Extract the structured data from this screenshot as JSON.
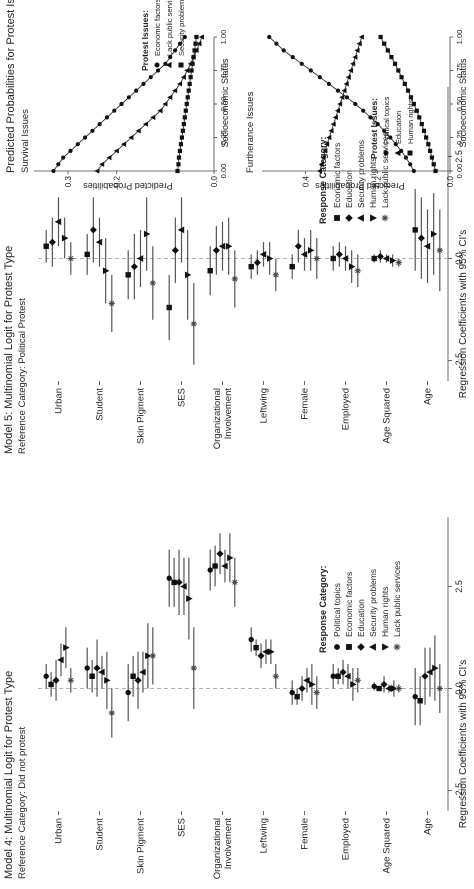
{
  "page_title": "Predicted Probabilities for Protest Issues",
  "chart_data": [
    {
      "type": "scatter",
      "title": "Model 4: Multinomial Logit for Protest Type",
      "subtitle": "Reference Category: Did not protest",
      "xlabel": "Regression Coefficients with 95% CI's",
      "xlim": [
        -3,
        4.2
      ],
      "xticks": [
        "-2.5",
        "0.0",
        "2.5"
      ],
      "xtick_values": [
        -2.5,
        0,
        2.5
      ],
      "categories": [
        "Urban",
        "Student",
        "Skin Pigment",
        "SES",
        "Organizational\nInvolvement",
        "Leftwing",
        "Female",
        "Employed",
        "Age Squared",
        "Age"
      ],
      "legend_title": "Response Category:",
      "series": [
        {
          "name": "Political topics",
          "marker": "circle",
          "estimates": [
            0.3,
            0.5,
            -0.1,
            2.7,
            2.9,
            1.2,
            -0.1,
            0.3,
            0.05,
            -0.2
          ],
          "ci": [
            [
              0.0,
              0.6
            ],
            [
              0.0,
              1.0
            ],
            [
              -0.8,
              0.6
            ],
            [
              2.0,
              3.4
            ],
            [
              2.4,
              3.4
            ],
            [
              0.9,
              1.5
            ],
            [
              -0.4,
              0.2
            ],
            [
              0.0,
              0.6
            ],
            [
              -0.05,
              0.15
            ],
            [
              -0.9,
              0.5
            ]
          ]
        },
        {
          "name": "Economic factors",
          "marker": "square",
          "estimates": [
            0.1,
            0.3,
            0.3,
            2.6,
            3.0,
            1.0,
            -0.2,
            0.3,
            0.0,
            -0.3
          ],
          "ci": [
            [
              -0.2,
              0.4
            ],
            [
              -0.1,
              0.7
            ],
            [
              -0.2,
              0.8
            ],
            [
              2.0,
              3.2
            ],
            [
              2.5,
              3.5
            ],
            [
              0.8,
              1.2
            ],
            [
              -0.4,
              0.0
            ],
            [
              0.1,
              0.5
            ],
            [
              -0.05,
              0.05
            ],
            [
              -0.9,
              0.3
            ]
          ]
        },
        {
          "name": "Education",
          "marker": "diamond",
          "estimates": [
            0.2,
            0.5,
            0.2,
            2.6,
            3.3,
            0.8,
            0.0,
            0.4,
            0.1,
            0.3
          ],
          "ci": [
            [
              -0.3,
              0.7
            ],
            [
              -0.2,
              1.2
            ],
            [
              -0.5,
              0.9
            ],
            [
              1.8,
              3.4
            ],
            [
              2.8,
              3.8
            ],
            [
              0.5,
              1.1
            ],
            [
              -0.3,
              0.3
            ],
            [
              0.1,
              0.7
            ],
            [
              -0.1,
              0.3
            ],
            [
              -0.4,
              1.0
            ]
          ]
        },
        {
          "name": "Security problems",
          "marker": "triangle-up",
          "estimates": [
            0.7,
            0.4,
            0.4,
            2.5,
            3.0,
            0.9,
            0.2,
            0.3,
            0.0,
            0.4
          ],
          "ci": [
            [
              0.3,
              1.1
            ],
            [
              0.0,
              0.8
            ],
            [
              -0.1,
              0.9
            ],
            [
              1.8,
              3.2
            ],
            [
              2.6,
              3.4
            ],
            [
              0.6,
              1.2
            ],
            [
              -0.1,
              0.5
            ],
            [
              0.0,
              0.6
            ],
            [
              -0.1,
              0.1
            ],
            [
              -0.2,
              1.0
            ]
          ]
        },
        {
          "name": "Human rights",
          "marker": "triangle-down",
          "estimates": [
            1.0,
            0.2,
            0.8,
            2.2,
            3.2,
            0.9,
            0.1,
            0.1,
            0.0,
            0.5
          ],
          "ci": [
            [
              0.5,
              1.5
            ],
            [
              -0.5,
              0.9
            ],
            [
              0.0,
              1.6
            ],
            [
              1.2,
              3.2
            ],
            [
              2.6,
              3.8
            ],
            [
              0.6,
              1.2
            ],
            [
              -0.4,
              0.6
            ],
            [
              -0.3,
              0.5
            ],
            [
              -0.2,
              0.2
            ],
            [
              -0.3,
              1.3
            ]
          ]
        },
        {
          "name": "Lack public services",
          "marker": "asterisk",
          "estimates": [
            0.2,
            -0.6,
            0.8,
            0.5,
            2.6,
            0.3,
            -0.1,
            0.2,
            0.0,
            0.0
          ],
          "ci": [
            [
              -0.1,
              0.5
            ],
            [
              -1.2,
              0.0
            ],
            [
              0.1,
              1.5
            ],
            [
              -0.5,
              1.5
            ],
            [
              2.0,
              3.2
            ],
            [
              0.0,
              0.6
            ],
            [
              -0.5,
              0.3
            ],
            [
              -0.1,
              0.5
            ],
            [
              -0.1,
              0.1
            ],
            [
              -0.6,
              0.6
            ]
          ]
        }
      ]
    },
    {
      "type": "scatter",
      "title": "Model 5: Multinomial Logit for Protest Type",
      "subtitle": "Reference Category: Political Protest",
      "xlabel": "Regression Coefficients with 95% CI's",
      "xlim": [
        -3,
        4.2
      ],
      "xticks": [
        "-2.5",
        "0.0",
        "2.5"
      ],
      "xtick_values": [
        -2.5,
        0,
        2.5
      ],
      "categories": [
        "Urban",
        "Student",
        "Skin Pigment",
        "SES",
        "Organizational\nInvolvement",
        "Leftwing",
        "Female",
        "Employed",
        "Age Squared",
        "Age"
      ],
      "legend_title": "Response Category:",
      "series": [
        {
          "name": "Economic factors",
          "marker": "square",
          "estimates": [
            0.3,
            0.1,
            -0.4,
            -1.2,
            -0.3,
            -0.2,
            -0.2,
            0.0,
            0.0,
            0.7
          ],
          "ci": [
            [
              -0.1,
              0.7
            ],
            [
              -0.4,
              0.6
            ],
            [
              -1.0,
              0.2
            ],
            [
              -2.0,
              -0.4
            ],
            [
              -0.9,
              0.3
            ],
            [
              -0.5,
              0.1
            ],
            [
              -0.5,
              0.1
            ],
            [
              -0.3,
              0.3
            ],
            [
              -0.1,
              0.1
            ],
            [
              -0.3,
              1.7
            ]
          ]
        },
        {
          "name": "Education",
          "marker": "diamond",
          "estimates": [
            0.4,
            0.7,
            -0.2,
            0.2,
            0.2,
            -0.1,
            0.3,
            0.1,
            0.05,
            0.5
          ],
          "ci": [
            [
              -0.2,
              1.0
            ],
            [
              -0.1,
              1.5
            ],
            [
              -1.0,
              0.6
            ],
            [
              -0.6,
              1.0
            ],
            [
              -0.4,
              0.8
            ],
            [
              -0.4,
              0.2
            ],
            [
              -0.1,
              0.7
            ],
            [
              -0.2,
              0.4
            ],
            [
              -0.1,
              0.2
            ],
            [
              -0.5,
              1.5
            ]
          ]
        },
        {
          "name": "Security problems",
          "marker": "triangle-up",
          "estimates": [
            0.9,
            0.4,
            0.0,
            0.7,
            0.3,
            0.1,
            0.1,
            0.0,
            0.0,
            0.3
          ],
          "ci": [
            [
              0.3,
              1.5
            ],
            [
              -0.2,
              1.0
            ],
            [
              -0.7,
              0.7
            ],
            [
              -0.1,
              1.5
            ],
            [
              -0.3,
              0.9
            ],
            [
              -0.2,
              0.4
            ],
            [
              -0.3,
              0.5
            ],
            [
              -0.3,
              0.3
            ],
            [
              -0.1,
              0.1
            ],
            [
              -0.6,
              1.2
            ]
          ]
        },
        {
          "name": "Human rights",
          "marker": "triangle-down",
          "estimates": [
            0.5,
            -0.3,
            0.6,
            -0.4,
            0.3,
            0.0,
            0.2,
            -0.2,
            -0.05,
            0.6
          ],
          "ci": [
            [
              0.0,
              1.0
            ],
            [
              -1.1,
              0.5
            ],
            [
              -0.3,
              1.5
            ],
            [
              -1.5,
              0.7
            ],
            [
              -0.4,
              1.0
            ],
            [
              -0.4,
              0.4
            ],
            [
              -0.3,
              0.7
            ],
            [
              -0.6,
              0.2
            ],
            [
              -0.2,
              0.1
            ],
            [
              -0.4,
              1.6
            ]
          ]
        },
        {
          "name": "Lack public services",
          "marker": "asterisk",
          "estimates": [
            0.0,
            -1.1,
            -0.6,
            -1.6,
            -0.5,
            -0.4,
            0.0,
            -0.3,
            -0.1,
            0.2
          ],
          "ci": [
            [
              -0.4,
              0.4
            ],
            [
              -1.8,
              -0.4
            ],
            [
              -1.5,
              0.3
            ],
            [
              -2.6,
              -0.6
            ],
            [
              -1.2,
              0.2
            ],
            [
              -0.8,
              0.0
            ],
            [
              -0.5,
              0.5
            ],
            [
              -0.7,
              0.1
            ],
            [
              -0.2,
              0.0
            ],
            [
              -0.8,
              1.2
            ]
          ]
        }
      ]
    },
    {
      "type": "line",
      "title": "Survival Issues",
      "xlabel": "Socioeconomic Status",
      "ylabel": "Predicted Probabilities",
      "xlim": [
        0,
        1
      ],
      "ylim": [
        0,
        0.37
      ],
      "xticks": [
        "0.00",
        "0.25",
        "0.50",
        "0.75",
        "1.00"
      ],
      "xtick_values": [
        0,
        0.25,
        0.5,
        0.75,
        1
      ],
      "yticks": [
        "0.0",
        "0.2",
        "0.3"
      ],
      "ytick_values": [
        0,
        0.2,
        0.3
      ],
      "legend_title": "Protest Issues:",
      "x": [
        0,
        0.05,
        0.1,
        0.15,
        0.2,
        0.25,
        0.3,
        0.35,
        0.4,
        0.45,
        0.5,
        0.55,
        0.6,
        0.65,
        0.7,
        0.75,
        0.8,
        0.85,
        0.9,
        0.95,
        1
      ],
      "series": [
        {
          "name": "Economic factors",
          "marker": "circle",
          "values": [
            0.33,
            0.32,
            0.31,
            0.295,
            0.28,
            0.265,
            0.25,
            0.235,
            0.22,
            0.205,
            0.19,
            0.175,
            0.16,
            0.145,
            0.13,
            0.115,
            0.1,
            0.09,
            0.08,
            0.07,
            0.06
          ]
        },
        {
          "name": "Lack public services",
          "marker": "triangle-up",
          "values": [
            0.24,
            0.23,
            0.215,
            0.2,
            0.185,
            0.17,
            0.155,
            0.14,
            0.125,
            0.11,
            0.1,
            0.09,
            0.08,
            0.07,
            0.062,
            0.055,
            0.048,
            0.042,
            0.036,
            0.03,
            0.025
          ]
        },
        {
          "name": "Security problems",
          "marker": "square",
          "values": [
            0.075,
            0.073,
            0.072,
            0.07,
            0.068,
            0.066,
            0.064,
            0.062,
            0.06,
            0.058,
            0.056,
            0.054,
            0.052,
            0.05,
            0.048,
            0.046,
            0.044,
            0.042,
            0.04,
            0.038,
            0.036
          ]
        }
      ]
    },
    {
      "type": "line",
      "title": "Furtherance Issues",
      "xlabel": "Socioeconomic Status",
      "ylabel": "Predicted Probabilities",
      "xlim": [
        0,
        1
      ],
      "ylim": [
        0,
        0.52
      ],
      "xticks": [
        "0.00",
        "0.25",
        "0.50",
        "0.75",
        "1.00"
      ],
      "xtick_values": [
        0,
        0.25,
        0.5,
        0.75,
        1
      ],
      "yticks": [
        "0.0",
        "0.2",
        "0.4"
      ],
      "ytick_values": [
        0,
        0.2,
        0.4
      ],
      "legend_title": "Protest Issues:",
      "x": [
        0,
        0.05,
        0.1,
        0.15,
        0.2,
        0.25,
        0.3,
        0.35,
        0.4,
        0.45,
        0.5,
        0.55,
        0.6,
        0.65,
        0.7,
        0.75,
        0.8,
        0.85,
        0.9,
        0.95,
        1
      ],
      "series": [
        {
          "name": "Political topics",
          "marker": "circle",
          "values": [
            0.1,
            0.11,
            0.122,
            0.135,
            0.15,
            0.165,
            0.182,
            0.2,
            0.22,
            0.24,
            0.262,
            0.285,
            0.31,
            0.335,
            0.36,
            0.385,
            0.41,
            0.435,
            0.46,
            0.48,
            0.5
          ]
        },
        {
          "name": "Education",
          "marker": "triangle-up",
          "values": [
            0.36,
            0.355,
            0.35,
            0.345,
            0.34,
            0.334,
            0.328,
            0.322,
            0.316,
            0.31,
            0.304,
            0.298,
            0.292,
            0.286,
            0.28,
            0.274,
            0.268,
            0.262,
            0.256,
            0.25,
            0.244
          ]
        },
        {
          "name": "Human rights",
          "marker": "square",
          "values": [
            0.04,
            0.045,
            0.05,
            0.055,
            0.06,
            0.066,
            0.072,
            0.078,
            0.085,
            0.092,
            0.1,
            0.108,
            0.116,
            0.125,
            0.134,
            0.143,
            0.152,
            0.162,
            0.172,
            0.182,
            0.192
          ]
        }
      ]
    }
  ]
}
